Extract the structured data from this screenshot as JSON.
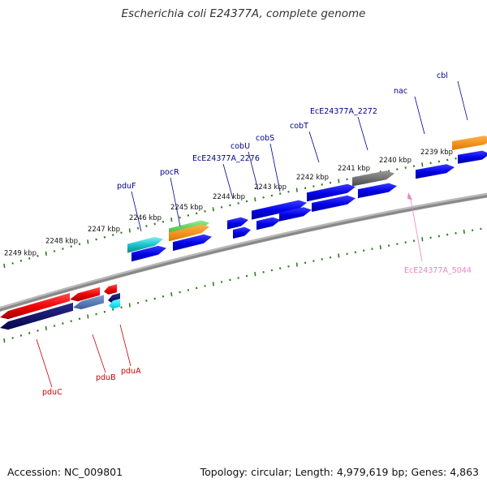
{
  "title": "Escherichia coli E24377A, complete genome",
  "footer": {
    "accession": "Accession: NC_009801",
    "stats": "Topology: circular; Length: 4,979,619 bp; Genes: 4,863"
  },
  "scale": {
    "unit": "kbp",
    "labels": [
      "2249 kbp",
      "2248 kbp",
      "2247 kbp",
      "2246 kbp",
      "2245 kbp",
      "2244 kbp",
      "2243 kbp",
      "2242 kbp",
      "2241 kbp",
      "2240 kbp",
      "2239 kbp"
    ]
  },
  "colors": {
    "backbone": "#888888",
    "tick": "#2e7d1f",
    "forward_label": "#00008b",
    "reverse_label": "#cc0000",
    "rna_label": "#ee82c8"
  },
  "genes_forward": [
    {
      "label": "pduF"
    },
    {
      "label": "pocR"
    },
    {
      "label": "EcE24377A_2276"
    },
    {
      "label": "cobU"
    },
    {
      "label": "cobS"
    },
    {
      "label": "cobT"
    },
    {
      "label": "EcE24377A_2272"
    },
    {
      "label": "nac"
    },
    {
      "label": "cbl"
    }
  ],
  "genes_reverse": [
    {
      "label": "pduC"
    },
    {
      "label": "pduB"
    },
    {
      "label": "pduA"
    }
  ],
  "genes_other": [
    {
      "label": "EcE24377A_5044"
    }
  ]
}
